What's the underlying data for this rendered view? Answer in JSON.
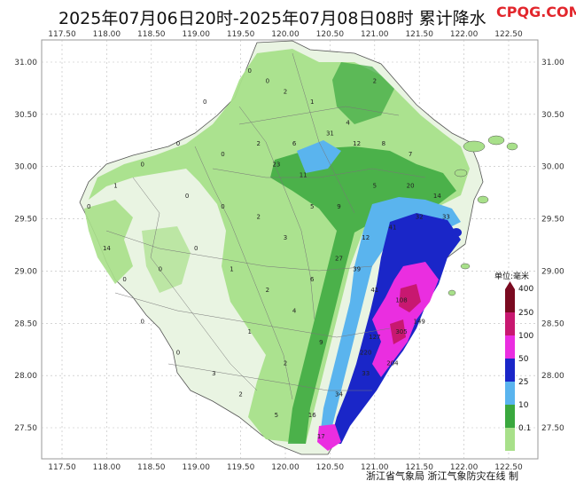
{
  "title": "2025年07月06日20时-2025年07月08日08时 累计降水",
  "watermark": "CPQG.COM",
  "footer": "浙江省气象局  浙江气象防灾在线  制",
  "x_ticks": [
    "117.50",
    "118.00",
    "118.50",
    "119.00",
    "119.50",
    "120.00",
    "120.50",
    "121.00",
    "121.50",
    "122.00",
    "122.50"
  ],
  "y_ticks": [
    "31.00",
    "30.50",
    "30.00",
    "29.50",
    "29.00",
    "28.50",
    "28.00",
    "27.50"
  ],
  "legend": {
    "title": "单位:毫米",
    "levels": [
      {
        "label": "400",
        "color": "#7a0a20"
      },
      {
        "label": "250",
        "color": "#c81870"
      },
      {
        "label": "100",
        "color": "#ea2ee0"
      },
      {
        "label": "50",
        "color": "#1a26c8"
      },
      {
        "label": "25",
        "color": "#5ab4ee"
      },
      {
        "label": "10",
        "color": "#3aa83e"
      },
      {
        "label": "0.1",
        "color": "#a8e08a"
      }
    ]
  },
  "station_values": [
    {
      "lon": 119.6,
      "lat": 30.9,
      "v": "0"
    },
    {
      "lon": 119.8,
      "lat": 30.8,
      "v": "0"
    },
    {
      "lon": 120.0,
      "lat": 30.7,
      "v": "2"
    },
    {
      "lon": 120.3,
      "lat": 30.6,
      "v": "1"
    },
    {
      "lon": 120.7,
      "lat": 30.4,
      "v": "4"
    },
    {
      "lon": 121.0,
      "lat": 30.8,
      "v": "2"
    },
    {
      "lon": 119.1,
      "lat": 30.6,
      "v": "0"
    },
    {
      "lon": 118.8,
      "lat": 30.2,
      "v": "0"
    },
    {
      "lon": 118.4,
      "lat": 30.0,
      "v": "0"
    },
    {
      "lon": 118.1,
      "lat": 29.8,
      "v": "1"
    },
    {
      "lon": 117.8,
      "lat": 29.6,
      "v": "0"
    },
    {
      "lon": 119.3,
      "lat": 30.1,
      "v": "0"
    },
    {
      "lon": 119.7,
      "lat": 30.2,
      "v": "2"
    },
    {
      "lon": 120.1,
      "lat": 30.2,
      "v": "6"
    },
    {
      "lon": 120.5,
      "lat": 30.3,
      "v": "31"
    },
    {
      "lon": 120.8,
      "lat": 30.2,
      "v": "12"
    },
    {
      "lon": 121.1,
      "lat": 30.2,
      "v": "8"
    },
    {
      "lon": 121.4,
      "lat": 30.1,
      "v": "7"
    },
    {
      "lon": 121.0,
      "lat": 29.8,
      "v": "5"
    },
    {
      "lon": 121.4,
      "lat": 29.8,
      "v": "20"
    },
    {
      "lon": 121.7,
      "lat": 29.7,
      "v": "14"
    },
    {
      "lon": 121.8,
      "lat": 29.5,
      "v": "33"
    },
    {
      "lon": 121.5,
      "lat": 29.5,
      "v": "32"
    },
    {
      "lon": 121.2,
      "lat": 29.4,
      "v": "41"
    },
    {
      "lon": 120.9,
      "lat": 29.3,
      "v": "12"
    },
    {
      "lon": 120.6,
      "lat": 29.1,
      "v": "27"
    },
    {
      "lon": 120.8,
      "lat": 29.0,
      "v": "39"
    },
    {
      "lon": 121.0,
      "lat": 28.8,
      "v": "41"
    },
    {
      "lon": 121.3,
      "lat": 28.7,
      "v": "108"
    },
    {
      "lon": 121.5,
      "lat": 28.5,
      "v": "149"
    },
    {
      "lon": 121.3,
      "lat": 28.4,
      "v": "305"
    },
    {
      "lon": 121.0,
      "lat": 28.35,
      "v": "127"
    },
    {
      "lon": 120.9,
      "lat": 28.2,
      "v": "220"
    },
    {
      "lon": 121.2,
      "lat": 28.1,
      "v": "204"
    },
    {
      "lon": 120.9,
      "lat": 28.0,
      "v": "33"
    },
    {
      "lon": 120.6,
      "lat": 27.8,
      "v": "34"
    },
    {
      "lon": 120.3,
      "lat": 27.6,
      "v": "16"
    },
    {
      "lon": 120.4,
      "lat": 27.4,
      "v": "17"
    },
    {
      "lon": 119.9,
      "lat": 27.6,
      "v": "5"
    },
    {
      "lon": 119.5,
      "lat": 27.8,
      "v": "2"
    },
    {
      "lon": 119.2,
      "lat": 28.0,
      "v": "3"
    },
    {
      "lon": 118.8,
      "lat": 28.2,
      "v": "0"
    },
    {
      "lon": 118.4,
      "lat": 28.5,
      "v": "0"
    },
    {
      "lon": 118.2,
      "lat": 28.9,
      "v": "0"
    },
    {
      "lon": 118.0,
      "lat": 29.2,
      "v": "14"
    },
    {
      "lon": 118.6,
      "lat": 29.0,
      "v": "0"
    },
    {
      "lon": 119.0,
      "lat": 29.2,
      "v": "0"
    },
    {
      "lon": 119.4,
      "lat": 29.0,
      "v": "1"
    },
    {
      "lon": 119.8,
      "lat": 28.8,
      "v": "2"
    },
    {
      "lon": 120.1,
      "lat": 28.6,
      "v": "4"
    },
    {
      "lon": 120.3,
      "lat": 28.9,
      "v": "6"
    },
    {
      "lon": 120.0,
      "lat": 29.3,
      "v": "3"
    },
    {
      "lon": 119.7,
      "lat": 29.5,
      "v": "2"
    },
    {
      "lon": 120.3,
      "lat": 29.6,
      "v": "5"
    },
    {
      "lon": 120.6,
      "lat": 29.6,
      "v": "9"
    },
    {
      "lon": 119.3,
      "lat": 29.6,
      "v": "0"
    },
    {
      "lon": 118.9,
      "lat": 29.7,
      "v": "0"
    },
    {
      "lon": 119.9,
      "lat": 30.0,
      "v": "23"
    },
    {
      "lon": 120.2,
      "lat": 29.9,
      "v": "11"
    },
    {
      "lon": 120.0,
      "lat": 28.1,
      "v": "2"
    },
    {
      "lon": 120.4,
      "lat": 28.3,
      "v": "9"
    },
    {
      "lon": 119.6,
      "lat": 28.4,
      "v": "1"
    }
  ]
}
